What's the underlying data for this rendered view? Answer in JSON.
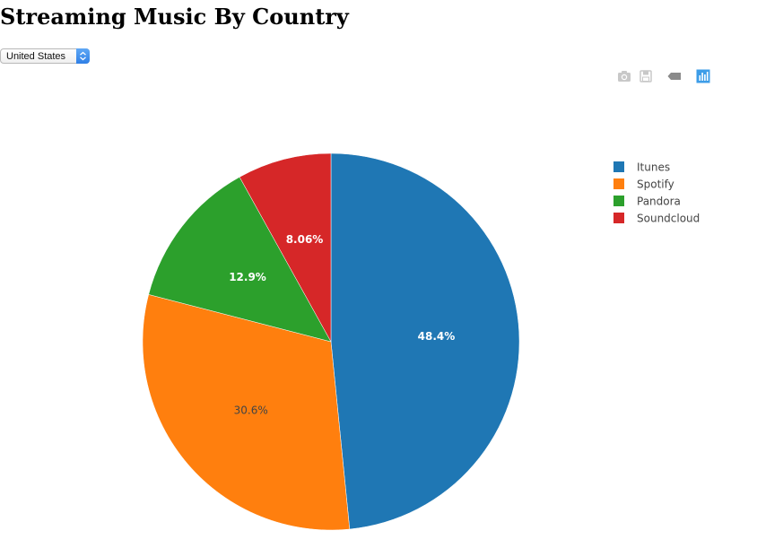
{
  "page": {
    "title": "Streaming Music By Country"
  },
  "country_select": {
    "selected": "United States"
  },
  "modebar": {
    "buttons": [
      "camera-icon",
      "save-icon",
      "tag-icon",
      "plotly-bar-chart-icon"
    ]
  },
  "chart_data": {
    "type": "pie",
    "title": "",
    "labels": [
      "Itunes",
      "Spotify",
      "Pandora",
      "Soundcloud"
    ],
    "values": [
      48.4,
      30.6,
      12.9,
      8.06
    ],
    "display_labels": [
      "48.4%",
      "30.6%",
      "12.9%",
      "8.06%"
    ],
    "colors": [
      "#1f77b4",
      "#ff7f0e",
      "#2ca02c",
      "#d62728"
    ],
    "label_colors": [
      "#ffffff",
      "#444444",
      "#ffffff",
      "#ffffff"
    ],
    "direction": "clockwise",
    "start_angle": "top",
    "legend": {
      "placement": "top-right",
      "entries": [
        "Itunes",
        "Spotify",
        "Pandora",
        "Soundcloud"
      ]
    }
  }
}
